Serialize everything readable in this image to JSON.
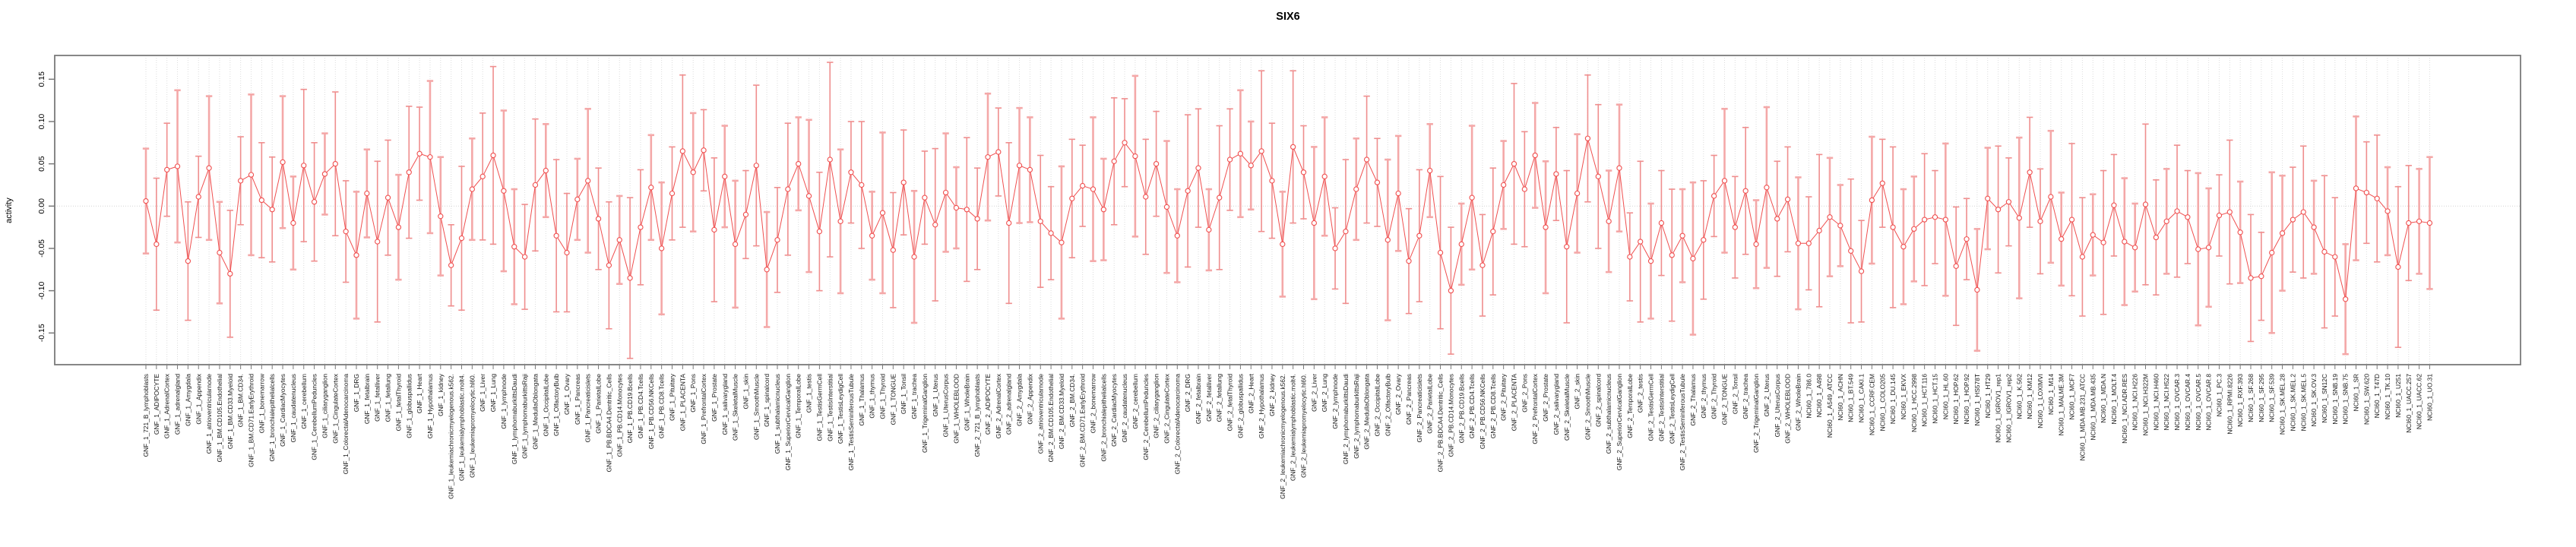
{
  "header": {
    "title": "SIX6"
  },
  "axes": {
    "y_label": "activity"
  },
  "chart_data": {
    "type": "line",
    "title": "SIX6",
    "xlabel": "",
    "ylabel": "activity",
    "ylim": [
      -0.175,
      0.185
    ],
    "grid": "vertical dotted gridline per category; dotted horizontal line at y=0",
    "legend": "none",
    "marker": "open-circle",
    "error_bars": true,
    "point_color": "#f04f4f",
    "errorbar_color": "#f4a8a8",
    "yticks": [
      0.15,
      0.1,
      0.05,
      0.0,
      -0.05,
      -0.1,
      -0.15
    ],
    "ytick_labels": [
      "0.15",
      "0.10",
      "0.05",
      "0.00",
      "-0.05",
      "-0.10",
      "-0.15"
    ],
    "categories": [
      "GNF_1_721_B_lymphoblasts",
      "GNF_1_ADIPOCYTE",
      "GNF_1_AdrenalCortex",
      "GNF_1_adrenalgland",
      "GNF_1_Amygdala",
      "GNF_1_Appendix",
      "GNF_1_atrioventricularnode",
      "GNF_1_BM.CD105.Endothelial",
      "GNF_1_BM.CD33.Myeloid",
      "GNF_1_BM.CD34.",
      "GNF_1_BM.CD71.EarlyErythroid",
      "GNF_1_bonemarrow",
      "GNF_1_bronchialepithelialcells",
      "GNF_1_CardiacMyocytes",
      "GNF_1_caudatenucleus",
      "GNF_1_cerebellum",
      "GNF_1_CerebellumPeduncles",
      "GNF_1_ciliaryganglion",
      "GNF_1_CingulateCortex",
      "GNF_1_ColorectalAdenocarcinoma",
      "GNF_1_DRG",
      "GNF_1_fetalbrain",
      "GNF_1_fetalliver",
      "GNF_1_fetallung",
      "GNF_1_fetalThyroid",
      "GNF_1_globuspallidus",
      "GNF_1_Heart",
      "GNF_1_Hypothalamus",
      "GNF_1_kidney",
      "GNF_1_leukemiachronicmyelogenous.k562.",
      "GNF_1_leukemialymphoblastic.molt4.",
      "GNF_1_leukemiapromyelocytic.hl60.",
      "GNF_1_Liver",
      "GNF_1_Lung",
      "GNF_1_lymphnode",
      "GNF_1_lymphomaburkittsDaudi",
      "GNF_1_lymphomaburkittsRaji",
      "GNF_1_MedullaOblongata",
      "GNF_1_OccipitalLobe",
      "GNF_1_OlfactoryBulb",
      "GNF_1_Ovary",
      "GNF_1_Pancreas",
      "GNF_1_Pancreaticislets",
      "GNF_1_ParietalLobe",
      "GNF_1_PB.BDCA4.Dentritic_Cells",
      "GNF_1_PB.CD14.Monocytes",
      "GNF_1_PB.CD19.Bcells",
      "GNF_1_PB.CD4.Tcells",
      "GNF_1_PB.CD56.NKCells",
      "GNF_1_PB.CD8.Tcells",
      "GNF_1_Pituitary",
      "GNF_1_PLACENTA",
      "GNF_1_Pons",
      "GNF_1_PrefrontalCortex",
      "GNF_1_Prostate",
      "GNF_1_salivarygland",
      "GNF_1_SkeletalMuscle",
      "GNF_1_skin",
      "GNF_1_SmoothMuscle",
      "GNF_1_spinalcord",
      "GNF_1_subthalamicnucleus",
      "GNF_1_SuperiorCervicalGanglion",
      "GNF_1_TemporalLobe",
      "GNF_1_testis",
      "GNF_1_TestisGermCell",
      "GNF_1_TestisInterstitial",
      "GNF_1_TestisLeydigCell",
      "GNF_1_TestisSeminiferousTubule",
      "GNF_1_Thalamus",
      "GNF_1_thymus",
      "GNF_1_Thyroid",
      "GNF_1_TONGUE",
      "GNF_1_Tonsil",
      "GNF_1_trachea",
      "GNF_1_TrigeminalGanglion",
      "GNF_1_Uterus",
      "GNF_1_UterusCorpus",
      "GNF_1_WHOLEBLOOD",
      "GNF_1_WholeBrain",
      "GNF_2_721_B_lymphoblasts",
      "GNF_2_ADIPOCYTE",
      "GNF_2_AdrenalCortex",
      "GNF_2_adrenalgland",
      "GNF_2_Amygdala",
      "GNF_2_Appendix",
      "GNF_2_atrioventricularnode",
      "GNF_2_BM.CD105.Endothelial",
      "GNF_2_BM.CD33.Myeloid",
      "GNF_2_BM.CD34.",
      "GNF_2_BM.CD71.EarlyErythroid",
      "GNF_2_bonemarrow",
      "GNF_2_bronchialepithelialcells",
      "GNF_2_CardiacMyocytes",
      "GNF_2_caudatenucleus",
      "GNF_2_cerebellum",
      "GNF_2_CerebellumPeduncles",
      "GNF_2_ciliaryganglion",
      "GNF_2_CingulateCortex",
      "GNF_2_ColorectalAdenocarcinoma",
      "GNF_2_DRG",
      "GNF_2_fetalbrain",
      "GNF_2_fetalliver",
      "GNF_2_fetallung",
      "GNF_2_fetalThyroid",
      "GNF_2_globuspallidus",
      "GNF_2_Heart",
      "GNF_2_Hypothalamus",
      "GNF_2_kidney",
      "GNF_2_leukemiachronicmyelogenous.k562.",
      "GNF_2_leukemialymphoblastic.molt4.",
      "GNF_2_leukemiapromyelocytic.hl60.",
      "GNF_2_Liver",
      "GNF_2_Lung",
      "GNF_2_lymphnode",
      "GNF_2_lymphomaburkittsDaudi",
      "GNF_2_lymphomaburkittsRaji",
      "GNF_2_MedullaOblongata",
      "GNF_2_OccipitalLobe",
      "GNF_2_OlfactoryBulb",
      "GNF_2_Ovary",
      "GNF_2_Pancreas",
      "GNF_2_Pancreaticislets",
      "GNF_2_ParietalLobe",
      "GNF_2_PB.BDCA4.Dentritic_Cells",
      "GNF_2_PB.CD14.Monocytes",
      "GNF_2_PB.CD19.Bcells",
      "GNF_2_PB.CD4.Tcells",
      "GNF_2_PB.CD56.NKCells",
      "GNF_2_PB.CD8.Tcells",
      "GNF_2_Pituitary",
      "GNF_2_PLACENTA",
      "GNF_2_Pons",
      "GNF_2_PrefrontalCortex",
      "GNF_2_Prostate",
      "GNF_2_salivarygland",
      "GNF_2_SkeletalMuscle",
      "GNF_2_skin",
      "GNF_2_SmoothMuscle",
      "GNF_2_spinalcord",
      "GNF_2_subthalamicnucleus",
      "GNF_2_SuperiorCervicalGanglion",
      "GNF_2_TemporalLobe",
      "GNF_2_testis",
      "GNF_2_TestisGermCell",
      "GNF_2_TestisInterstitial",
      "GNF_2_TestisLeydigCell",
      "GNF_2_TestisSeminiferousTubule",
      "GNF_2_Thalamus",
      "GNF_2_thymus",
      "GNF_2_Thyroid",
      "GNF_2_TONGUE",
      "GNF_2_Tonsil",
      "GNF_2_trachea",
      "GNF_2_TrigeminalGanglion",
      "GNF_2_Uterus",
      "GNF_2_UterusCorpus",
      "GNF_2_WHOLEBLOOD",
      "GNF_2_WholeBrain",
      "NCI60_1_786.0",
      "NCI60_1_A498",
      "NCI60_1_A549_ATCC",
      "NCI60_1_ACHN",
      "NCI60_1_BT.549",
      "NCI60_1_CAKI.1",
      "NCI60_1_CCRF.CEM",
      "NCI60_1_COLO205",
      "NCI60_1_DU.145",
      "NCI60_1_EKVX",
      "NCI60_1_HCC.2998",
      "NCI60_1_HCT.116",
      "NCI60_1_HCT.15",
      "NCI60_1_HL.60",
      "NCI60_1_HOP.62",
      "NCI60_1_HOP.92",
      "NCI60_1_HS578T",
      "NCI60_1_HT29",
      "NCI60_1_IGROV1_rep1",
      "NCI60_1_IGROV1_rep2",
      "NCI60_1_K.562",
      "NCI60_1_KM12",
      "NCI60_1_LOXIMVI",
      "NCI60_1_M14",
      "NCI60_1_MALME.3M",
      "NCI60_1_MCF7",
      "NCI60_1_MDA.MB.231_ATCC",
      "NCI60_1_MDA.MB.435",
      "NCI60_1_MDA.N",
      "NCI60_1_MOLT.4",
      "NCI60_1_NCI.ADR.RES",
      "NCI60_1_NCI.H226",
      "NCI60_1_NCI.H322M",
      "NCI60_1_NCI.H460",
      "NCI60_1_NCI.H522",
      "NCI60_1_OVCAR.3",
      "NCI60_1_OVCAR.4",
      "NCI60_1_OVCAR.5",
      "NCI60_1_OVCAR.8",
      "NCI60_1_PC.3",
      "NCI60_1_RPMI.8226",
      "NCI60_1_RXF.393",
      "NCI60_1_SF.268",
      "NCI60_1_SF.295",
      "NCI60_1_SF.539",
      "NCI60_1_SK.MEL.28",
      "NCI60_1_SK.MEL.2",
      "NCI60_1_SK.MEL.5",
      "NCI60_1_SK.OV.3",
      "NCI60_1_SN12C",
      "NCI60_1_SNB.19",
      "NCI60_1_SNB.75",
      "NCI60_1_SR",
      "NCI60_1_SW.620",
      "NCI60_1_T47D",
      "NCI60_1_TK.10",
      "NCI60_1_U251",
      "NCI60_1_UACC.257",
      "NCI60_1_UACC.62",
      "NCI60_1_UO.31"
    ],
    "means": [
      0.006,
      -0.045,
      0.043,
      0.047,
      -0.065,
      0.011,
      0.045,
      -0.055,
      -0.08,
      0.03,
      0.037,
      0.007,
      -0.004,
      0.052,
      -0.02,
      0.048,
      0.005,
      0.038,
      0.05,
      -0.03,
      -0.058,
      0.015,
      -0.042,
      0.01,
      -0.025,
      0.04,
      0.062,
      0.058,
      -0.012,
      -0.07,
      -0.038,
      0.02,
      0.035,
      0.06,
      0.018,
      -0.048,
      -0.06,
      0.025,
      0.042,
      -0.035,
      -0.055,
      0.008,
      0.03,
      -0.015,
      -0.07,
      -0.04,
      -0.085,
      -0.025,
      0.022,
      -0.05,
      0.015,
      0.065,
      0.04,
      0.066,
      -0.028,
      0.035,
      -0.045,
      -0.01,
      0.048,
      -0.075,
      -0.04,
      0.02,
      0.05,
      0.012,
      -0.03,
      0.055,
      -0.018,
      0.04,
      0.025,
      -0.035,
      -0.008,
      -0.052,
      0.028,
      -0.06,
      0.01,
      -0.022,
      0.016,
      -0.002,
      -0.004,
      -0.015,
      0.058,
      0.064,
      -0.02,
      0.048,
      0.043,
      -0.018,
      -0.032,
      -0.043,
      0.009,
      0.024,
      0.02,
      -0.004,
      0.053,
      0.075,
      0.059,
      0.011,
      0.05,
      -0.001,
      -0.035,
      0.018,
      0.045,
      -0.028,
      0.01,
      0.055,
      0.062,
      0.048,
      0.065,
      0.03,
      -0.045,
      0.07,
      0.04,
      -0.02,
      0.035,
      -0.05,
      -0.03,
      0.02,
      0.055,
      0.028,
      -0.04,
      0.015,
      -0.065,
      -0.035,
      0.042,
      -0.055,
      -0.1,
      -0.045,
      0.01,
      -0.07,
      -0.03,
      0.025,
      0.05,
      0.02,
      0.06,
      -0.025,
      0.038,
      -0.048,
      0.015,
      0.08,
      0.035,
      -0.018,
      0.045,
      -0.06,
      -0.042,
      -0.065,
      -0.02,
      -0.058,
      -0.035,
      -0.062,
      -0.04,
      0.012,
      0.03,
      -0.025,
      0.018,
      -0.045,
      0.022,
      -0.015,
      0.008,
      -0.044,
      -0.044,
      -0.029,
      -0.013,
      -0.023,
      -0.053,
      -0.077,
      0.007,
      0.027,
      -0.025,
      -0.048,
      -0.027,
      -0.016,
      -0.013,
      -0.016,
      -0.071,
      -0.039,
      -0.099,
      0.009,
      -0.004,
      0.005,
      -0.014,
      0.04,
      -0.018,
      0.011,
      -0.039,
      -0.016,
      -0.06,
      -0.034,
      -0.043,
      0.001,
      -0.042,
      -0.049,
      0.002,
      -0.037,
      -0.018,
      -0.006,
      -0.013,
      -0.051,
      -0.049,
      -0.011,
      -0.007,
      -0.031,
      -0.085,
      -0.083,
      -0.055,
      -0.032,
      -0.016,
      -0.007,
      -0.025,
      -0.054,
      -0.06,
      -0.11,
      0.021,
      0.016,
      0.009,
      -0.006,
      -0.072,
      -0.02,
      -0.018,
      -0.02
    ],
    "errors": [
      0.062,
      0.078,
      0.055,
      0.09,
      0.07,
      0.048,
      0.085,
      0.06,
      0.075,
      0.052,
      0.095,
      0.068,
      0.062,
      0.078,
      0.055,
      0.09,
      0.07,
      0.048,
      0.085,
      0.06,
      0.075,
      0.052,
      0.095,
      0.068,
      0.062,
      0.078,
      0.055,
      0.09,
      0.07,
      0.048,
      0.085,
      0.06,
      0.075,
      0.105,
      0.095,
      0.068,
      0.062,
      0.078,
      0.055,
      0.09,
      0.07,
      0.048,
      0.085,
      0.06,
      0.075,
      0.052,
      0.095,
      0.068,
      0.062,
      0.078,
      0.055,
      0.09,
      0.07,
      0.048,
      0.085,
      0.06,
      0.075,
      0.052,
      0.095,
      0.068,
      0.062,
      0.078,
      0.055,
      0.09,
      0.07,
      0.115,
      0.085,
      0.06,
      0.075,
      0.052,
      0.095,
      0.068,
      0.062,
      0.078,
      0.055,
      0.09,
      0.07,
      0.048,
      0.085,
      0.06,
      0.075,
      0.052,
      0.095,
      0.068,
      0.062,
      0.078,
      0.055,
      0.09,
      0.07,
      0.048,
      0.085,
      0.06,
      0.075,
      0.052,
      0.095,
      0.068,
      0.062,
      0.078,
      0.055,
      0.09,
      0.07,
      0.048,
      0.085,
      0.06,
      0.075,
      0.052,
      0.095,
      0.068,
      0.062,
      0.09,
      0.055,
      0.09,
      0.07,
      0.048,
      0.085,
      0.06,
      0.075,
      0.052,
      0.095,
      0.068,
      0.062,
      0.078,
      0.055,
      0.09,
      0.075,
      0.048,
      0.085,
      0.06,
      0.075,
      0.052,
      0.095,
      0.068,
      0.062,
      0.078,
      0.055,
      0.09,
      0.07,
      0.075,
      0.085,
      0.06,
      0.075,
      0.052,
      0.095,
      0.068,
      0.062,
      0.078,
      0.055,
      0.09,
      0.07,
      0.048,
      0.085,
      0.06,
      0.075,
      0.052,
      0.095,
      0.068,
      0.062,
      0.078,
      0.055,
      0.09,
      0.07,
      0.048,
      0.085,
      0.06,
      0.075,
      0.052,
      0.095,
      0.068,
      0.062,
      0.078,
      0.055,
      0.09,
      0.07,
      0.048,
      0.072,
      0.06,
      0.075,
      0.052,
      0.095,
      0.065,
      0.062,
      0.078,
      0.055,
      0.09,
      0.07,
      0.048,
      0.085,
      0.06,
      0.075,
      0.052,
      0.095,
      0.068,
      0.062,
      0.078,
      0.055,
      0.09,
      0.07,
      0.048,
      0.085,
      0.06,
      0.075,
      0.052,
      0.095,
      0.068,
      0.062,
      0.078,
      0.055,
      0.09,
      0.07,
      0.065,
      0.085,
      0.06,
      0.075,
      0.052,
      0.095,
      0.068,
      0.062,
      0.078
    ]
  }
}
